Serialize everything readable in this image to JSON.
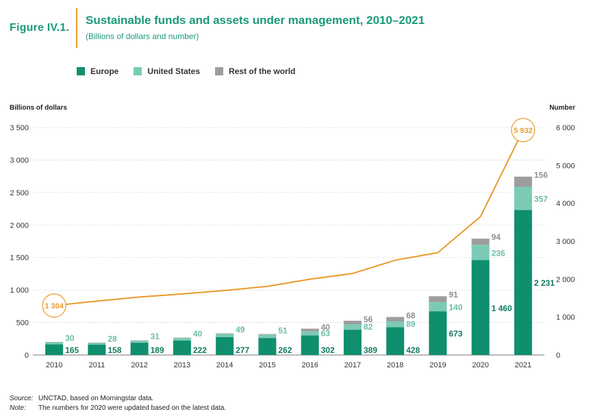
{
  "figure": {
    "label": "Figure IV.1.",
    "title": "Sustainable funds and assets under management, 2010–2021",
    "subtitle": "(Billions of dollars and number)"
  },
  "legend": [
    {
      "name": "Europe",
      "color": "#0f8f6e"
    },
    {
      "name": "United States",
      "color": "#7ccab5"
    },
    {
      "name": "Rest of the world",
      "color": "#9d9d9d"
    }
  ],
  "notes": {
    "source_key": "Source:",
    "source_text": "UNCTAD, based on Morningstar data.",
    "note_key": "Note:",
    "note_text": "The numbers for 2020 were updated based on the latest data."
  },
  "chart_data": {
    "type": "bar",
    "stacked": true,
    "categories": [
      "2010",
      "2011",
      "2012",
      "2013",
      "2014",
      "2015",
      "2016",
      "2017",
      "2018",
      "2019",
      "2020",
      "2021"
    ],
    "series": [
      {
        "name": "Europe",
        "values": [
          165,
          158,
          189,
          222,
          277,
          262,
          302,
          389,
          428,
          673,
          1460,
          2231
        ],
        "labels": [
          "165",
          "158",
          "189",
          "222",
          "277",
          "262",
          "302",
          "389",
          "428",
          "673",
          "1 460",
          "2 231"
        ]
      },
      {
        "name": "United States",
        "values": [
          30,
          28,
          31,
          40,
          49,
          51,
          63,
          82,
          89,
          140,
          236,
          357
        ],
        "labels": [
          "30",
          "28",
          "31",
          "40",
          "49",
          "51",
          "63",
          "82",
          "89",
          "140",
          "236",
          "357"
        ]
      },
      {
        "name": "Rest of the world",
        "values": [
          5,
          5,
          5,
          5,
          7,
          9,
          40,
          56,
          68,
          91,
          94,
          156
        ],
        "labels": [
          "",
          "",
          "",
          "",
          "",
          "",
          "40",
          "56",
          "68",
          "91",
          "94",
          "156"
        ]
      }
    ],
    "line": {
      "name": "Number",
      "axis": "right",
      "values": [
        1304,
        1420,
        1530,
        1610,
        1700,
        1810,
        2000,
        2150,
        2500,
        2700,
        3650,
        5932
      ],
      "highlight_labels": [
        {
          "index": 0,
          "label": "1 304"
        },
        {
          "index": 11,
          "label": "5 932"
        }
      ],
      "color": "#e99a2c"
    },
    "ylabel_left": "Billions of dollars",
    "ylabel_right": "Number",
    "ylim_left": [
      0,
      3500
    ],
    "ylim_right": [
      0,
      6000
    ],
    "yticks_left": [
      {
        "v": 0,
        "label": "0"
      },
      {
        "v": 500,
        "label": "500"
      },
      {
        "v": 1000,
        "label": "1 000"
      },
      {
        "v": 1500,
        "label": "1 500"
      },
      {
        "v": 2000,
        "label": "2 000"
      },
      {
        "v": 2500,
        "label": "2 500"
      },
      {
        "v": 3000,
        "label": "3 000"
      },
      {
        "v": 3500,
        "label": "3 500"
      }
    ],
    "yticks_right": [
      {
        "v": 0,
        "label": "0"
      },
      {
        "v": 1000,
        "label": "1 000"
      },
      {
        "v": 2000,
        "label": "2 000"
      },
      {
        "v": 3000,
        "label": "3 000"
      },
      {
        "v": 4000,
        "label": "4 000"
      },
      {
        "v": 5000,
        "label": "5 000"
      },
      {
        "v": 6000,
        "label": "6 000"
      }
    ],
    "grid": true
  }
}
